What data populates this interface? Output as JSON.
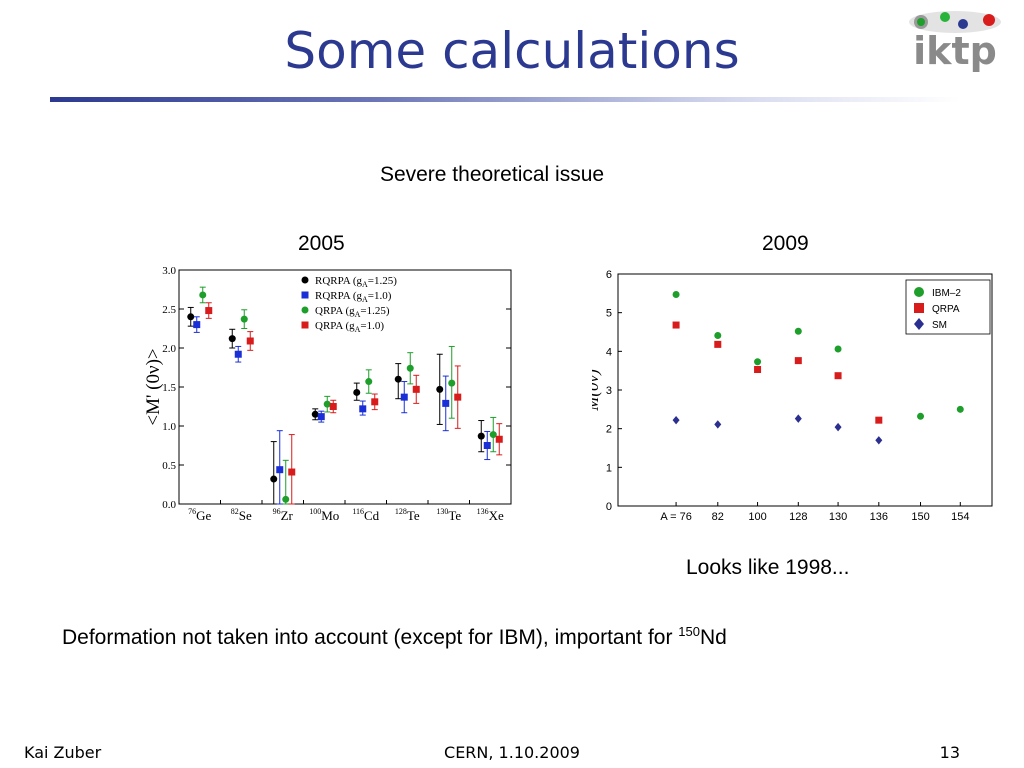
{
  "slide": {
    "title": "Some calculations",
    "subtitle": "Severe theoretical issue",
    "year_left": "2005",
    "year_right": "2009",
    "note": "Looks like 1998...",
    "bottom_line_text": "Deformation not taken into account (except for IBM), important for ",
    "bottom_line_sup": "150",
    "bottom_line_end": "Nd",
    "logo_text": "iktp",
    "footer_left": "Kai Zuber",
    "footer_center": "CERN, 1.10.2009",
    "footer_right": "13"
  },
  "chart_data": [
    {
      "type": "scatter",
      "ylabel": "<M' (0ν)>",
      "ylim": [
        0.0,
        3.0
      ],
      "yticks": [
        "0.0",
        "0.5",
        "1.0",
        "1.5",
        "2.0",
        "2.5",
        "3.0"
      ],
      "categories": [
        {
          "mass": "76",
          "element": "Ge"
        },
        {
          "mass": "82",
          "element": "Se"
        },
        {
          "mass": "96",
          "element": "Zr"
        },
        {
          "mass": "100",
          "element": "Mo"
        },
        {
          "mass": "116",
          "element": "Cd"
        },
        {
          "mass": "128",
          "element": "Te"
        },
        {
          "mass": "130",
          "element": "Te"
        },
        {
          "mass": "136",
          "element": "Xe"
        }
      ],
      "legend_position": "top-right",
      "series": [
        {
          "name": "RQRPA (gA=1.25)",
          "legend_main": "RQRPA",
          "legend_sub": "A",
          "legend_val": "=1.25",
          "color": "#000000",
          "marker": "circle",
          "values": [
            2.4,
            2.12,
            0.32,
            1.15,
            1.43,
            1.6,
            1.47,
            0.87
          ],
          "err_low": [
            0.12,
            0.12,
            0.32,
            0.07,
            0.1,
            0.25,
            0.45,
            0.2
          ],
          "err_high": [
            0.12,
            0.12,
            0.48,
            0.07,
            0.12,
            0.2,
            0.45,
            0.2
          ]
        },
        {
          "name": "RQRPA (gA=1.0)",
          "legend_main": "RQRPA",
          "legend_sub": "A",
          "legend_val": "=1.0",
          "color": "#1a2fd6",
          "marker": "square",
          "values": [
            2.3,
            1.92,
            0.44,
            1.12,
            1.22,
            1.37,
            1.29,
            0.75
          ],
          "err_low": [
            0.1,
            0.1,
            0.44,
            0.07,
            0.08,
            0.2,
            0.35,
            0.18
          ],
          "err_high": [
            0.1,
            0.1,
            0.5,
            0.07,
            0.1,
            0.2,
            0.35,
            0.18
          ]
        },
        {
          "name": "QRPA (gA=1.25)",
          "legend_main": "QRPA",
          "legend_sub": "A",
          "legend_val": "=1.25",
          "color": "#1e9e2a",
          "marker": "circle",
          "values": [
            2.68,
            2.37,
            0.06,
            1.28,
            1.57,
            1.74,
            1.55,
            0.89
          ],
          "err_low": [
            0.1,
            0.12,
            0.06,
            0.1,
            0.15,
            0.2,
            0.45,
            0.22
          ],
          "err_high": [
            0.1,
            0.12,
            0.5,
            0.1,
            0.15,
            0.2,
            0.47,
            0.22
          ]
        },
        {
          "name": "QRPA (gA=1.0)",
          "legend_main": "QRPA",
          "legend_sub": "A",
          "legend_val": "=1.0",
          "color": "#d81c1c",
          "marker": "square",
          "values": [
            2.48,
            2.09,
            0.41,
            1.25,
            1.31,
            1.47,
            1.37,
            0.83
          ],
          "err_low": [
            0.1,
            0.12,
            0.41,
            0.08,
            0.1,
            0.18,
            0.4,
            0.2
          ],
          "err_high": [
            0.1,
            0.12,
            0.48,
            0.08,
            0.1,
            0.18,
            0.4,
            0.2
          ]
        }
      ]
    },
    {
      "type": "scatter",
      "ylabel": "M(0ν)",
      "ylim": [
        0,
        6
      ],
      "yticks": [
        "0",
        "1",
        "2",
        "3",
        "4",
        "5",
        "6"
      ],
      "categories": [
        "A = 76",
        "82",
        "100",
        "128",
        "130",
        "136",
        "150",
        "154"
      ],
      "legend_position": "top-right",
      "series": [
        {
          "name": "IBM–2",
          "color": "#1e9e2a",
          "marker": "circle",
          "values": [
            5.47,
            4.41,
            3.73,
            4.52,
            4.06,
            null,
            2.32,
            2.5
          ]
        },
        {
          "name": "QRPA",
          "color": "#d81c1c",
          "marker": "square",
          "values": [
            4.68,
            4.18,
            3.53,
            3.76,
            3.37,
            2.22,
            null,
            null
          ]
        },
        {
          "name": "SM",
          "color": "#2b2f8f",
          "marker": "diamond",
          "values": [
            2.22,
            2.11,
            null,
            2.26,
            2.04,
            1.7,
            null,
            null
          ]
        }
      ]
    }
  ]
}
